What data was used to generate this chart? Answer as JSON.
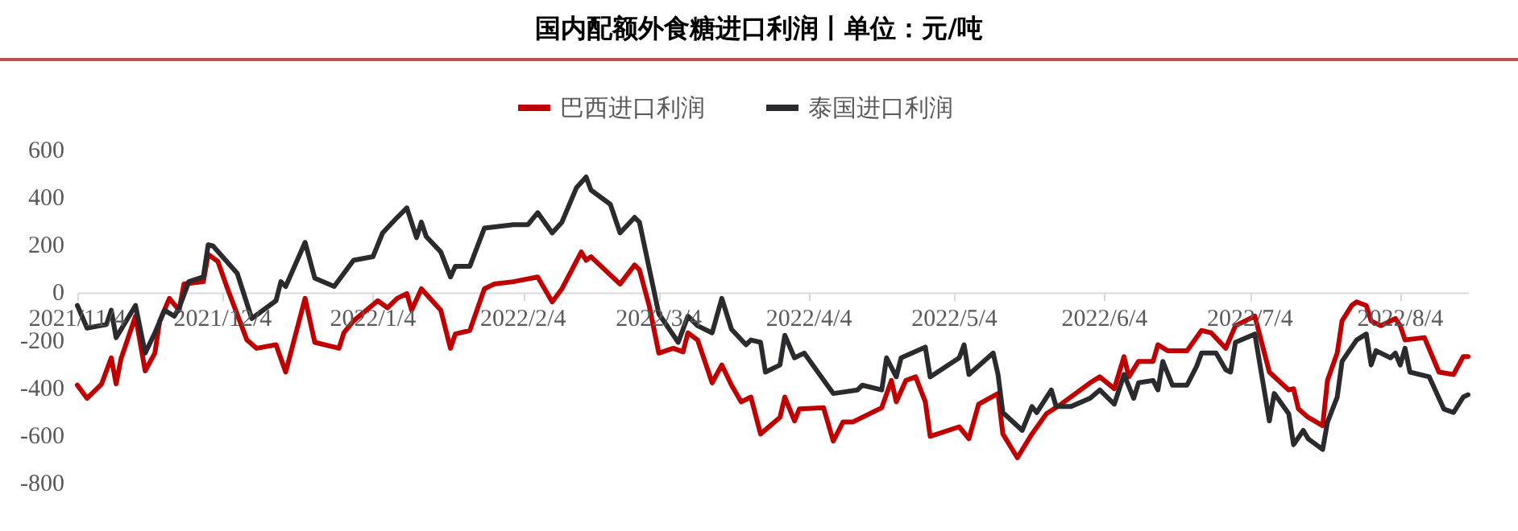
{
  "chart_data": {
    "type": "line",
    "title": "国内配额外食糖进口利润丨单位：元/吨",
    "xlim": [
      "2021-11-04",
      "2022-08-18"
    ],
    "xticks": [
      {
        "value": "2021-11-04",
        "label": "2021/11/4"
      },
      {
        "value": "2021-12-04",
        "label": "2021/12/4"
      },
      {
        "value": "2022-01-04",
        "label": "2022/1/4"
      },
      {
        "value": "2022-02-04",
        "label": "2022/2/4"
      },
      {
        "value": "2022-03-04",
        "label": "2022/3/4"
      },
      {
        "value": "2022-04-04",
        "label": "2022/4/4"
      },
      {
        "value": "2022-05-04",
        "label": "2022/5/4"
      },
      {
        "value": "2022-06-04",
        "label": "2022/6/4"
      },
      {
        "value": "2022-07-04",
        "label": "2022/7/4"
      },
      {
        "value": "2022-08-04",
        "label": "2022/8/4"
      }
    ],
    "ylim": [
      -800,
      600
    ],
    "yticks": [
      -800,
      -600,
      -400,
      -200,
      0,
      200,
      400,
      600
    ],
    "grid": false,
    "legend": "top",
    "marker": "none",
    "line_style": "solid",
    "series": [
      {
        "name": "巴西进口利润",
        "color": "#c00000",
        "x": [
          "2021-11-04",
          "2021-11-06",
          "2021-11-09",
          "2021-11-11",
          "2021-11-12",
          "2021-11-13",
          "2021-11-16",
          "2021-11-18",
          "2021-11-20",
          "2021-11-21",
          "2021-11-23",
          "2021-11-25",
          "2021-11-26",
          "2021-11-30",
          "2021-12-01",
          "2021-12-03",
          "2021-12-05",
          "2021-12-09",
          "2021-12-11",
          "2021-12-15",
          "2021-12-17",
          "2021-12-21",
          "2021-12-23",
          "2021-12-28",
          "2021-12-29",
          "2021-12-31",
          "2022-01-05",
          "2022-01-07",
          "2022-01-09",
          "2022-01-11",
          "2022-01-12",
          "2022-01-14",
          "2022-01-18",
          "2022-01-20",
          "2022-01-21",
          "2022-01-24",
          "2022-01-27",
          "2022-01-29",
          "2022-02-02",
          "2022-02-07",
          "2022-02-10",
          "2022-02-12",
          "2022-02-16",
          "2022-02-17",
          "2022-02-18",
          "2022-02-24",
          "2022-02-27",
          "2022-02-28",
          "2022-03-02",
          "2022-03-04",
          "2022-03-07",
          "2022-03-09",
          "2022-03-10",
          "2022-03-12",
          "2022-03-15",
          "2022-03-17",
          "2022-03-19",
          "2022-03-21",
          "2022-03-23",
          "2022-03-25",
          "2022-03-29",
          "2022-03-30",
          "2022-04-01",
          "2022-04-02",
          "2022-04-07",
          "2022-04-09",
          "2022-04-11",
          "2022-04-13",
          "2022-04-19",
          "2022-04-21",
          "2022-04-22",
          "2022-04-24",
          "2022-04-26",
          "2022-04-28",
          "2022-04-29",
          "2022-05-05",
          "2022-05-07",
          "2022-05-09",
          "2022-05-13",
          "2022-05-14",
          "2022-05-17",
          "2022-05-20",
          "2022-05-23",
          "2022-05-26",
          "2022-06-01",
          "2022-06-03",
          "2022-06-06",
          "2022-06-08",
          "2022-06-09",
          "2022-06-11",
          "2022-06-14",
          "2022-06-15",
          "2022-06-17",
          "2022-06-21",
          "2022-06-24",
          "2022-06-26",
          "2022-06-29",
          "2022-07-01",
          "2022-07-05",
          "2022-07-08",
          "2022-07-12",
          "2022-07-13",
          "2022-07-14",
          "2022-07-16",
          "2022-07-19",
          "2022-07-20",
          "2022-07-22",
          "2022-07-23",
          "2022-07-25",
          "2022-07-26",
          "2022-07-28",
          "2022-07-29",
          "2022-07-31",
          "2022-08-03",
          "2022-08-04",
          "2022-08-05",
          "2022-08-09",
          "2022-08-12",
          "2022-08-15",
          "2022-08-17",
          "2022-08-18"
        ],
        "values": [
          -390,
          -445,
          -385,
          -275,
          -385,
          -280,
          -100,
          -330,
          -255,
          -120,
          -25,
          -75,
          35,
          45,
          160,
          130,
          15,
          -200,
          -235,
          -220,
          -335,
          -25,
          -210,
          -235,
          -170,
          -120,
          -35,
          -65,
          -25,
          -5,
          -75,
          15,
          -75,
          -235,
          -175,
          -160,
          15,
          35,
          45,
          65,
          -40,
          15,
          170,
          135,
          150,
          35,
          115,
          95,
          -55,
          -255,
          -235,
          -250,
          -170,
          -200,
          -380,
          -305,
          -390,
          -460,
          -440,
          -595,
          -525,
          -440,
          -540,
          -490,
          -485,
          -625,
          -545,
          -545,
          -485,
          -370,
          -460,
          -370,
          -355,
          -460,
          -605,
          -565,
          -615,
          -470,
          -425,
          -595,
          -695,
          -595,
          -510,
          -470,
          -380,
          -355,
          -405,
          -270,
          -355,
          -290,
          -290,
          -220,
          -245,
          -245,
          -160,
          -170,
          -235,
          -140,
          -100,
          -335,
          -410,
          -405,
          -490,
          -525,
          -560,
          -370,
          -255,
          -120,
          -55,
          -40,
          -55,
          -120,
          -140,
          -110,
          -140,
          -200,
          -190,
          -335,
          -345,
          -270,
          -270
        ]
      },
      {
        "name": "泰国进口利润",
        "color": "#2b2b2f",
        "x": [
          "2021-11-04",
          "2021-11-06",
          "2021-11-10",
          "2021-11-11",
          "2021-11-12",
          "2021-11-16",
          "2021-11-18",
          "2021-11-20",
          "2021-11-22",
          "2021-11-24",
          "2021-11-25",
          "2021-11-27",
          "2021-11-30",
          "2021-12-01",
          "2021-12-02",
          "2021-12-07",
          "2021-12-10",
          "2021-12-15",
          "2021-12-16",
          "2021-12-17",
          "2021-12-21",
          "2021-12-23",
          "2021-12-27",
          "2021-12-29",
          "2021-12-31",
          "2022-01-04",
          "2022-01-06",
          "2022-01-09",
          "2022-01-11",
          "2022-01-13",
          "2022-01-14",
          "2022-01-15",
          "2022-01-18",
          "2022-01-20",
          "2022-01-21",
          "2022-01-24",
          "2022-01-27",
          "2022-02-02",
          "2022-02-05",
          "2022-02-07",
          "2022-02-10",
          "2022-02-12",
          "2022-02-15",
          "2022-02-17",
          "2022-02-18",
          "2022-02-22",
          "2022-02-24",
          "2022-02-27",
          "2022-02-28",
          "2022-03-04",
          "2022-03-08",
          "2022-03-10",
          "2022-03-12",
          "2022-03-15",
          "2022-03-17",
          "2022-03-19",
          "2022-03-22",
          "2022-03-23",
          "2022-03-25",
          "2022-03-26",
          "2022-03-29",
          "2022-03-30",
          "2022-04-01",
          "2022-04-03",
          "2022-04-09",
          "2022-04-14",
          "2022-04-15",
          "2022-04-19",
          "2022-04-20",
          "2022-04-22",
          "2022-04-23",
          "2022-04-28",
          "2022-04-29",
          "2022-05-05",
          "2022-05-06",
          "2022-05-07",
          "2022-05-12",
          "2022-05-13",
          "2022-05-14",
          "2022-05-18",
          "2022-05-20",
          "2022-05-21",
          "2022-05-24",
          "2022-05-25",
          "2022-05-28",
          "2022-06-01",
          "2022-06-03",
          "2022-06-06",
          "2022-06-08",
          "2022-06-10",
          "2022-06-11",
          "2022-06-14",
          "2022-06-15",
          "2022-06-16",
          "2022-06-18",
          "2022-06-21",
          "2022-06-23",
          "2022-06-24",
          "2022-06-27",
          "2022-06-29",
          "2022-06-30",
          "2022-07-01",
          "2022-07-05",
          "2022-07-08",
          "2022-07-09",
          "2022-07-12",
          "2022-07-13",
          "2022-07-15",
          "2022-07-16",
          "2022-07-19",
          "2022-07-20",
          "2022-07-22",
          "2022-07-23",
          "2022-07-26",
          "2022-07-28",
          "2022-07-29",
          "2022-07-30",
          "2022-08-02",
          "2022-08-03",
          "2022-08-04",
          "2022-08-05",
          "2022-08-06",
          "2022-08-10",
          "2022-08-13",
          "2022-08-15",
          "2022-08-17",
          "2022-08-18"
        ],
        "values": [
          -55,
          -150,
          -135,
          -75,
          -190,
          -55,
          -255,
          -170,
          -75,
          -100,
          -65,
          45,
          65,
          200,
          195,
          80,
          -110,
          -35,
          45,
          25,
          210,
          60,
          25,
          80,
          135,
          150,
          250,
          315,
          355,
          230,
          295,
          235,
          170,
          65,
          110,
          110,
          270,
          285,
          285,
          335,
          250,
          295,
          440,
          485,
          430,
          370,
          250,
          315,
          295,
          -90,
          -210,
          -100,
          -140,
          -170,
          -25,
          -155,
          -220,
          -200,
          -210,
          -335,
          -305,
          -180,
          -275,
          -255,
          -425,
          -410,
          -390,
          -410,
          -275,
          -355,
          -275,
          -230,
          -355,
          -275,
          -220,
          -345,
          -255,
          -345,
          -505,
          -580,
          -480,
          -505,
          -410,
          -480,
          -480,
          -445,
          -410,
          -470,
          -345,
          -445,
          -380,
          -370,
          -410,
          -290,
          -390,
          -390,
          -310,
          -255,
          -255,
          -325,
          -335,
          -210,
          -175,
          -540,
          -425,
          -510,
          -640,
          -580,
          -615,
          -660,
          -545,
          -440,
          -290,
          -200,
          -175,
          -305,
          -245,
          -275,
          -255,
          -305,
          -235,
          -335,
          -355,
          -490,
          -505,
          -440,
          -430
        ]
      }
    ]
  }
}
